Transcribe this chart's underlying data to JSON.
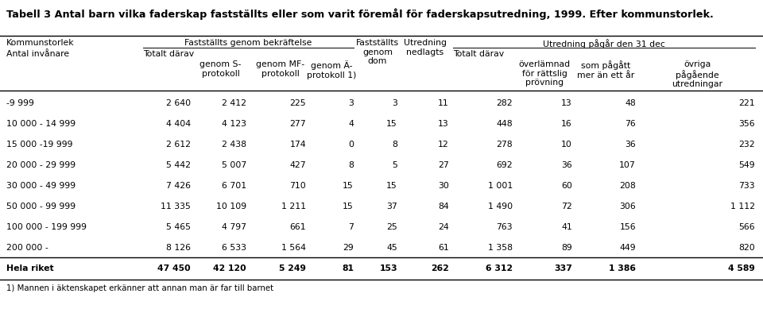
{
  "title": "Tabell 3 Antal barn vilka faderskap fastställts eller som varit föremål för faderskapsutredning, 1999. Efter kommunstorlek.",
  "footnote": "1) Mannen i äktenskapet erkänner att annan man är far till barnet",
  "rows": [
    [
      "-9 999",
      "2 640",
      "2 412",
      "225",
      "3",
      "3",
      "11",
      "282",
      "13",
      "48",
      "221"
    ],
    [
      "10 000 - 14 999",
      "4 404",
      "4 123",
      "277",
      "4",
      "15",
      "13",
      "448",
      "16",
      "76",
      "356"
    ],
    [
      "15 000 -19 999",
      "2 612",
      "2 438",
      "174",
      "0",
      "8",
      "12",
      "278",
      "10",
      "36",
      "232"
    ],
    [
      "20 000 - 29 999",
      "5 442",
      "5 007",
      "427",
      "8",
      "5",
      "27",
      "692",
      "36",
      "107",
      "549"
    ],
    [
      "30 000 - 49 999",
      "7 426",
      "6 701",
      "710",
      "15",
      "15",
      "30",
      "1 001",
      "60",
      "208",
      "733"
    ],
    [
      "50 000 - 99 999",
      "11 335",
      "10 109",
      "1 211",
      "15",
      "37",
      "84",
      "1 490",
      "72",
      "306",
      "1 112"
    ],
    [
      "100 000 - 199 999",
      "5 465",
      "4 797",
      "661",
      "7",
      "25",
      "24",
      "763",
      "41",
      "156",
      "566"
    ],
    [
      "200 000 -",
      "8 126",
      "6 533",
      "1 564",
      "29",
      "45",
      "61",
      "1 358",
      "89",
      "449",
      "820"
    ],
    [
      "Hela riket",
      "47 450",
      "42 120",
      "5 249",
      "81",
      "153",
      "262",
      "6 312",
      "337",
      "1 386",
      "4 589"
    ]
  ],
  "bg_color": "#ffffff",
  "text_color": "#000000",
  "fs": 7.8,
  "title_fs": 9.2
}
